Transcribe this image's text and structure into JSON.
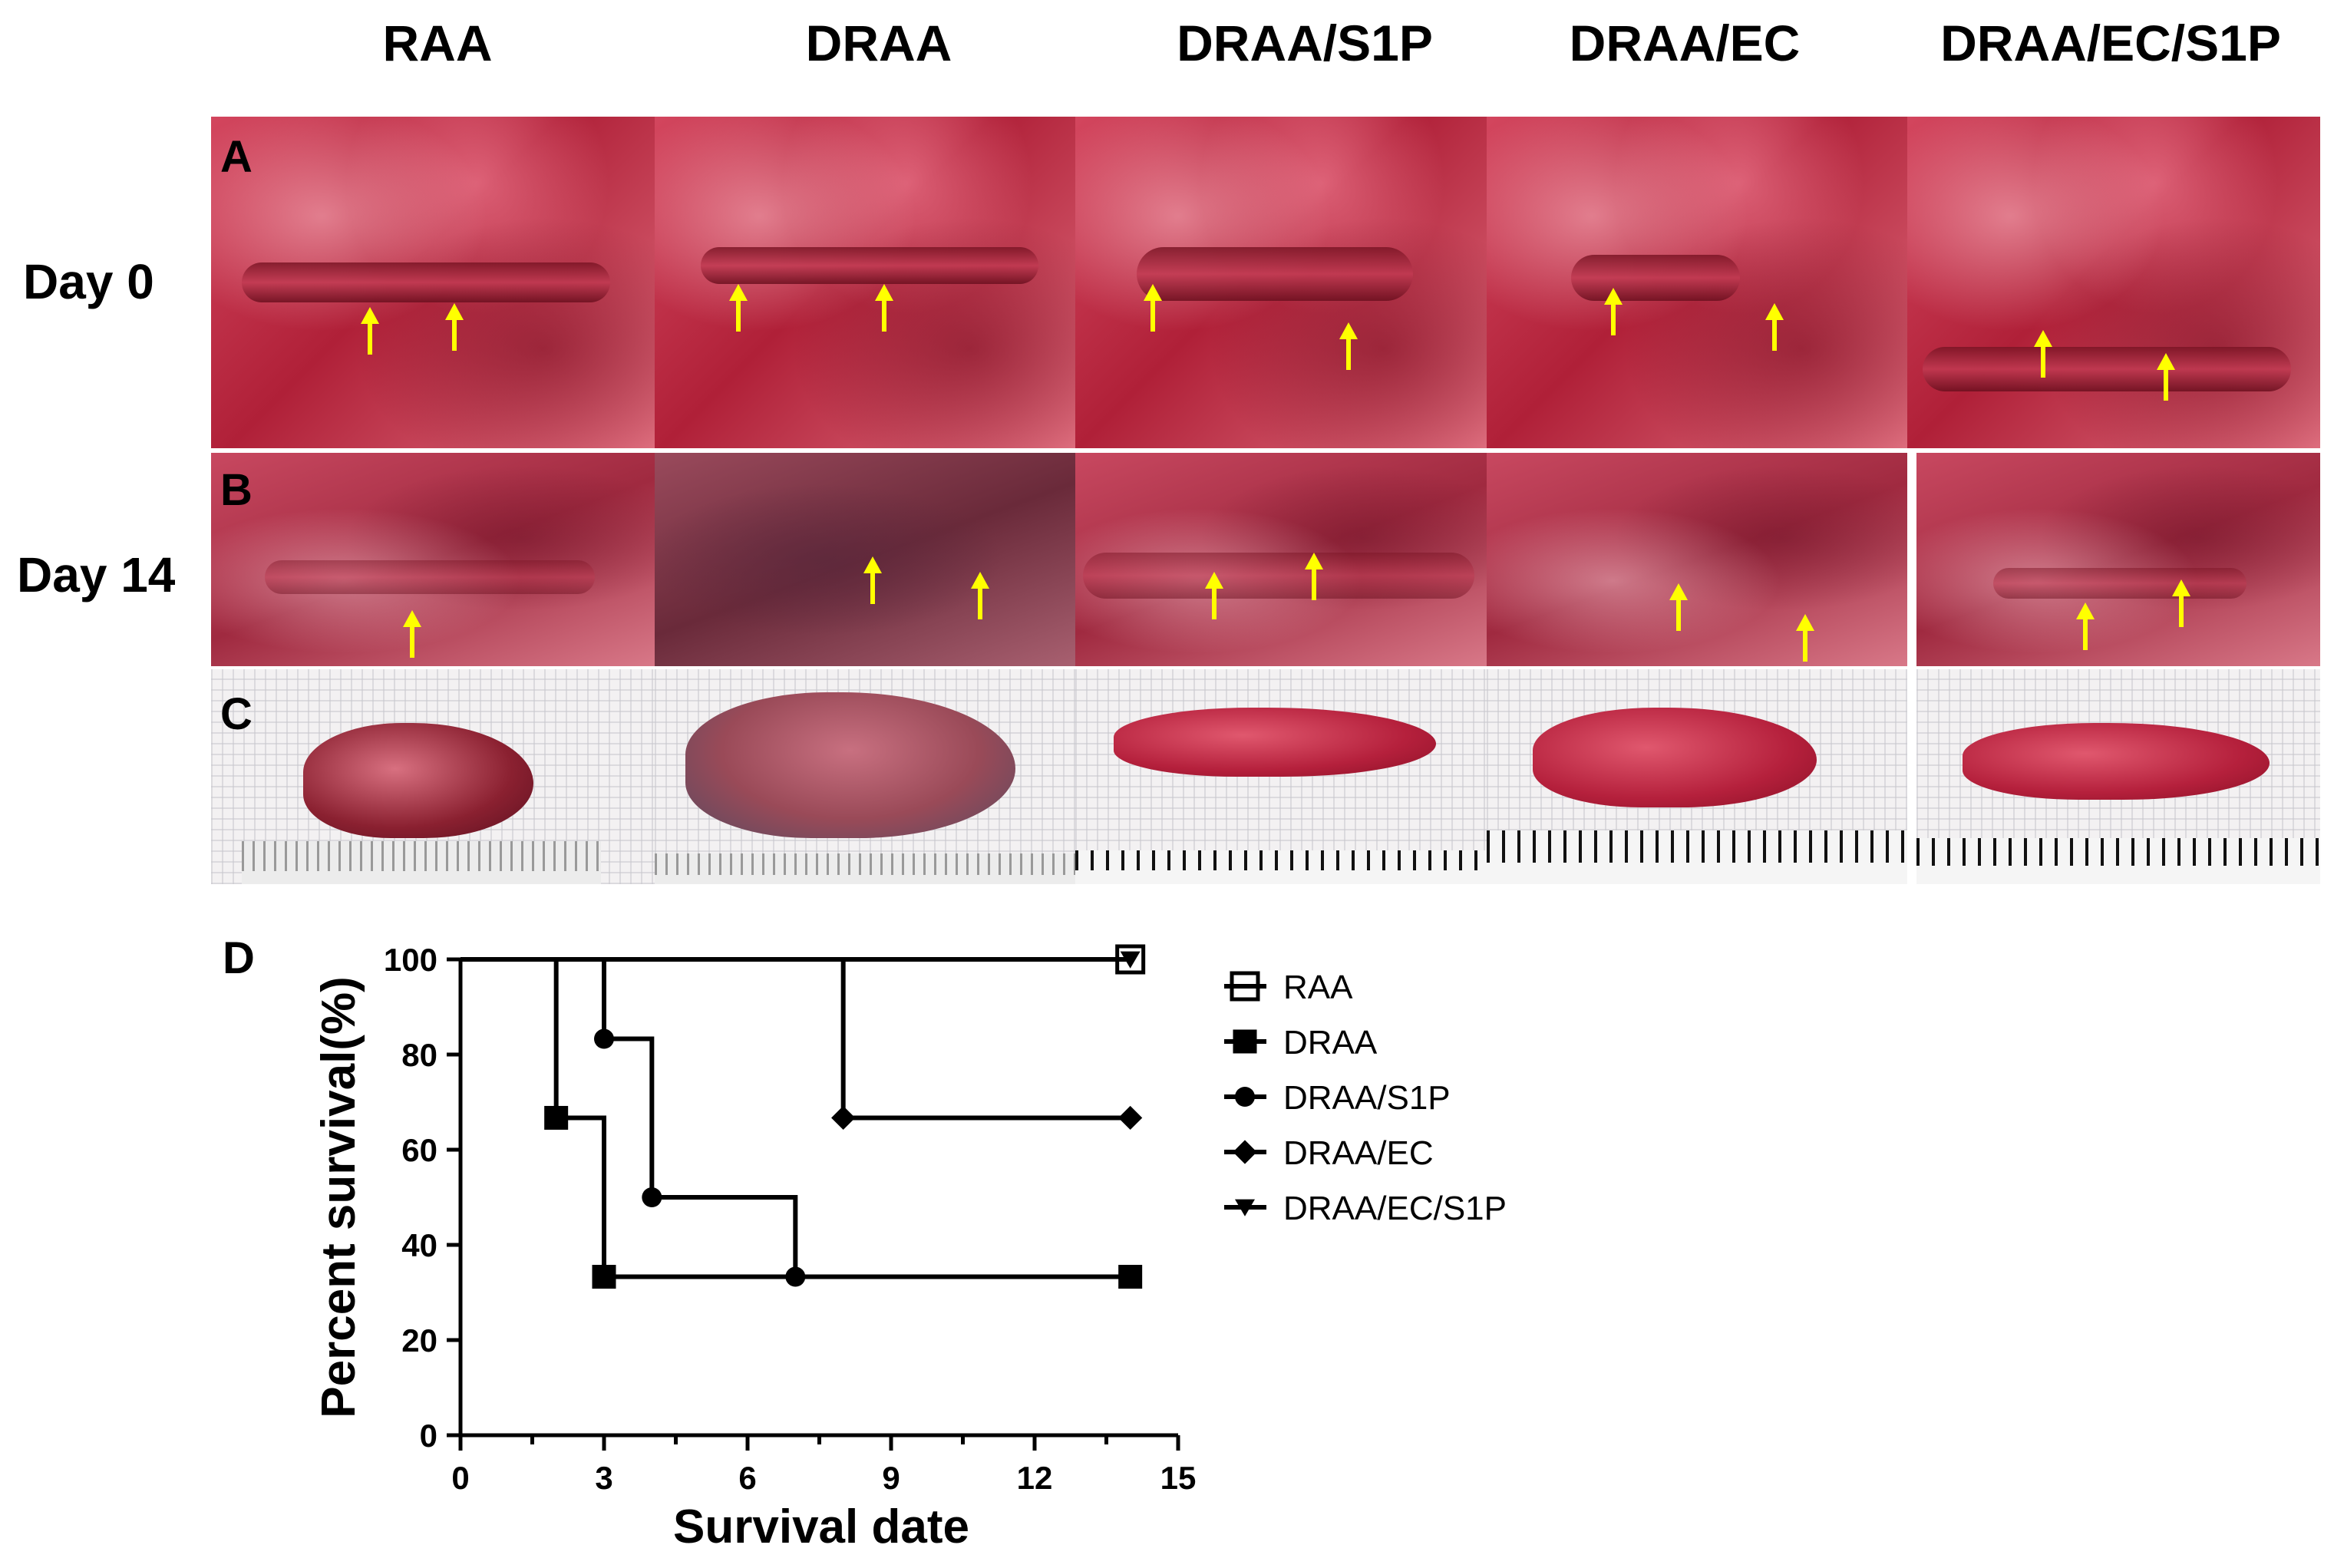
{
  "columns": [
    "RAA",
    "DRAA",
    "DRAA/S1P",
    "DRAA/EC",
    "DRAA/EC/S1P"
  ],
  "rows": {
    "day0": "Day 0",
    "day14": "Day 14"
  },
  "panels": {
    "a": "A",
    "b": "B",
    "c": "C",
    "d": "D"
  },
  "colors": {
    "arrow": "#ffff00",
    "line": "#000000"
  },
  "chart_data": {
    "type": "line",
    "subtype": "kaplan-meier step",
    "xlabel": "Survival date",
    "ylabel": "Percent survival(%)",
    "xlim": [
      0,
      15
    ],
    "ylim": [
      0,
      100
    ],
    "xticks": [
      0,
      3,
      6,
      9,
      12,
      15
    ],
    "yticks": [
      0,
      20,
      40,
      60,
      80,
      100
    ],
    "legend_position": "right",
    "series": [
      {
        "name": "RAA",
        "marker": "open-square",
        "x": [
          0,
          14
        ],
        "y": [
          100,
          100
        ],
        "events": [
          {
            "x": 14,
            "y": 100
          }
        ]
      },
      {
        "name": "DRAA",
        "marker": "filled-square",
        "x": [
          0,
          2,
          3,
          14
        ],
        "y": [
          100,
          66.7,
          33.3,
          33.3
        ],
        "events": [
          {
            "x": 2,
            "y": 66.7
          },
          {
            "x": 3,
            "y": 33.3
          },
          {
            "x": 14,
            "y": 33.3
          }
        ]
      },
      {
        "name": "DRAA/S1P",
        "marker": "filled-circle",
        "x": [
          0,
          3,
          4,
          7,
          14
        ],
        "y": [
          100,
          83.3,
          50,
          33.3,
          33.3
        ],
        "events": [
          {
            "x": 3,
            "y": 83.3
          },
          {
            "x": 4,
            "y": 50
          },
          {
            "x": 7,
            "y": 33.3
          }
        ]
      },
      {
        "name": "DRAA/EC",
        "marker": "filled-diamond",
        "x": [
          0,
          8,
          14
        ],
        "y": [
          100,
          66.7,
          66.7
        ],
        "events": [
          {
            "x": 8,
            "y": 66.7
          },
          {
            "x": 14,
            "y": 66.7
          }
        ]
      },
      {
        "name": "DRAA/EC/S1P",
        "marker": "filled-down-triangle",
        "x": [
          0,
          14
        ],
        "y": [
          100,
          100
        ],
        "events": [
          {
            "x": 14,
            "y": 100
          }
        ]
      }
    ]
  }
}
